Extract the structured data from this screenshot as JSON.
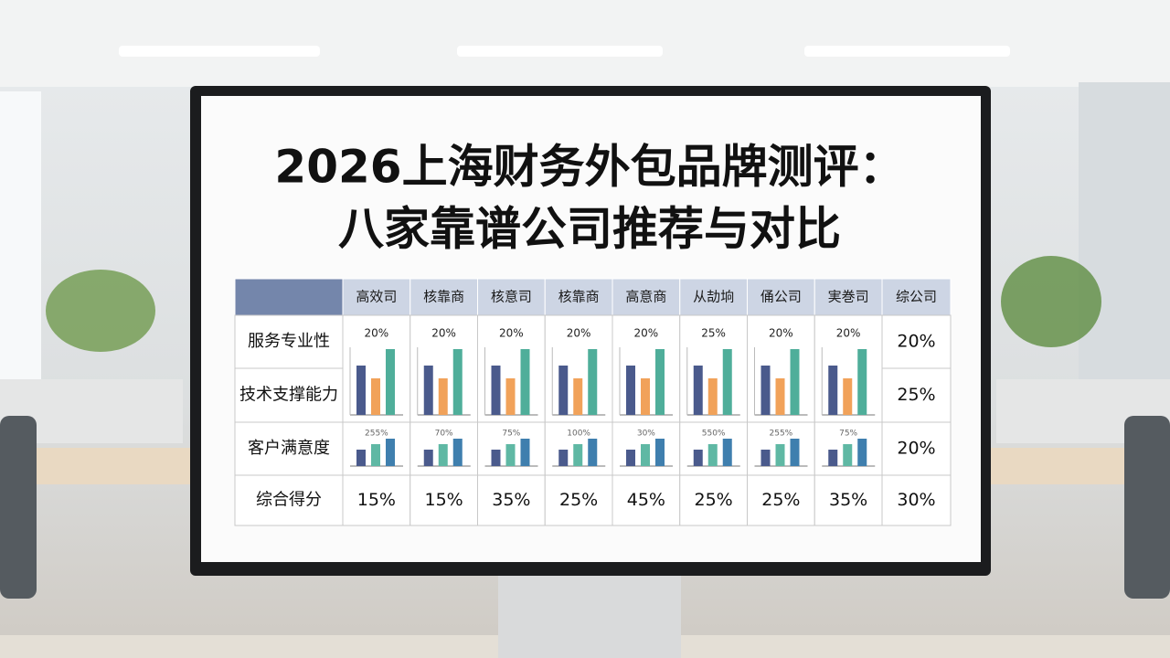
{
  "title": [
    "2026上海财务外包品牌测评：",
    "八家靠谱公司推荐与对比"
  ],
  "table": {
    "header": [
      "高效司",
      "核靠商",
      "核意司",
      "核靠商",
      "高意商",
      "从劼垧",
      "俑公司",
      "実巻司",
      "综公司"
    ],
    "rows": [
      {
        "label": "服务专业性",
        "cells": [
          "20%",
          "20%",
          "20%",
          "20%",
          "20%",
          "25%",
          "20%",
          "20%"
        ],
        "last": "20%"
      },
      {
        "label": "技术支撑能力",
        "last": "25%"
      },
      {
        "label": "客户满意度",
        "cells": [
          "255%",
          "70%",
          "75%",
          "100%",
          "30%",
          "550%",
          "255%",
          "75%"
        ],
        "last": "20%"
      },
      {
        "label": "综合得分",
        "cells": [
          "15%",
          "15%",
          "35%",
          "25%",
          "45%",
          "25%",
          "25%",
          "35%"
        ],
        "last": "30%"
      }
    ]
  }
}
